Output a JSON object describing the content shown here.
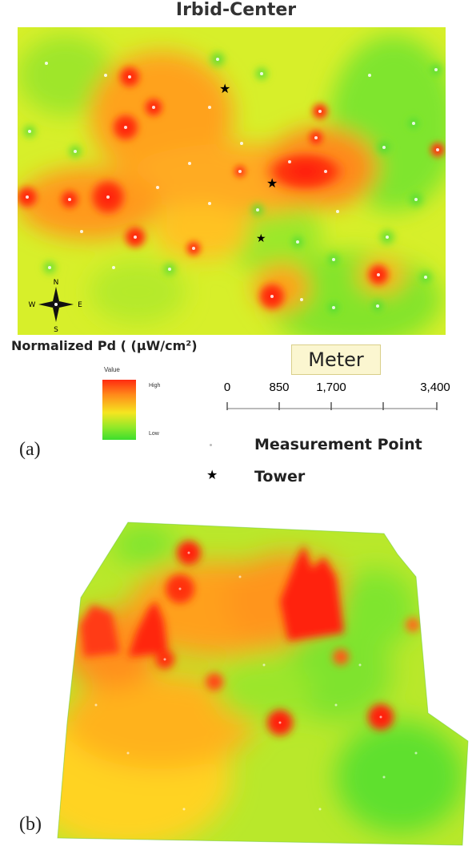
{
  "title": "Irbid-Center",
  "panel_a": {
    "label": "(a)",
    "compass": {
      "n": "N",
      "s": "S",
      "e": "E",
      "w": "W"
    },
    "colors": {
      "high": "#ff2a10",
      "mid": "#f5e620",
      "low": "#3cde2e"
    }
  },
  "panel_b": {
    "label": "(b)"
  },
  "legend": {
    "quantity": "Normalized Pd ( (μW/cm²)",
    "value_title": "Value",
    "high_label": "High",
    "low_label": "Low",
    "measurement_label": "Measurement Point",
    "tower_label": "Tower",
    "measurement_icon": "dot-icon",
    "tower_icon": "star-icon"
  },
  "scale": {
    "unit": "Meter",
    "ticks": [
      "0",
      "850",
      "1,700",
      "3,400"
    ]
  }
}
